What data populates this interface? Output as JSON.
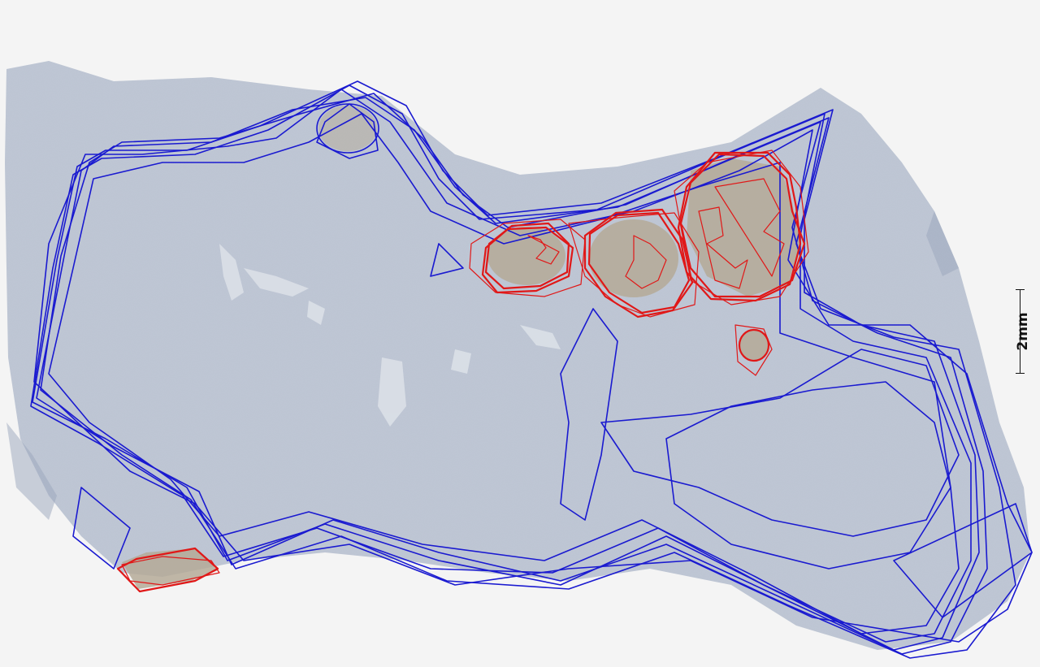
{
  "image": {
    "subject": "tissue-section",
    "colors": {
      "background": "#f4f4f4",
      "tissue": "#bcc4d2",
      "tissue_dark": "#a8b2c4",
      "tumor_region": "#b8ae9e",
      "annotation_outer": "#1a1ad0",
      "annotation_lesion": "#e01818"
    }
  },
  "scale_bar": {
    "label": "2mm"
  }
}
